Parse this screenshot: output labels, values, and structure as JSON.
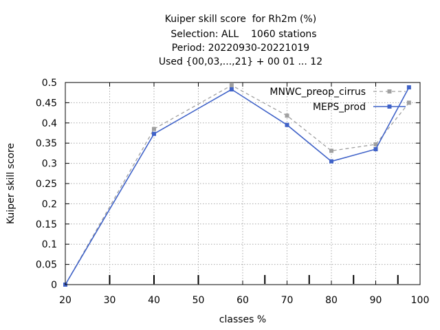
{
  "chart_data": {
    "type": "line",
    "title_lines": [
      "Kuiper skill score  for Rh2m (%)",
      "  Selection: ALL    1060 stations",
      "Period: 20220930-20221019",
      "Used {00,03,...,21} + 00 01 ... 12"
    ],
    "xlabel": "classes %",
    "ylabel": "Kuiper skill score",
    "xlim": [
      20,
      100
    ],
    "ylim": [
      0,
      0.5
    ],
    "x_ticks": [
      "20",
      "30",
      "40",
      "50",
      "60",
      "70",
      "80",
      "90",
      "100"
    ],
    "y_ticks": [
      "0",
      "0.05",
      "0.1",
      "0.15",
      "0.2",
      "0.25",
      "0.3",
      "0.35",
      "0.4",
      "0.45",
      "0.5"
    ],
    "grid": true,
    "legend_position": "top-right",
    "bottom_markers_x": [
      30,
      40,
      50,
      65,
      75,
      85,
      95
    ],
    "series": [
      {
        "name": "MNWC_preop_cirrus",
        "color": "#a0a0a0",
        "dashed": true,
        "x": [
          20,
          40,
          57.5,
          70,
          80,
          90,
          97.5
        ],
        "y": [
          0.0,
          0.385,
          0.493,
          0.418,
          0.331,
          0.347,
          0.45
        ]
      },
      {
        "name": "MEPS_prod",
        "color": "#3f62c8",
        "dashed": false,
        "x": [
          20,
          40,
          57.5,
          70,
          80,
          90,
          97.5
        ],
        "y": [
          0.0,
          0.373,
          0.483,
          0.395,
          0.305,
          0.335,
          0.488
        ]
      }
    ]
  }
}
